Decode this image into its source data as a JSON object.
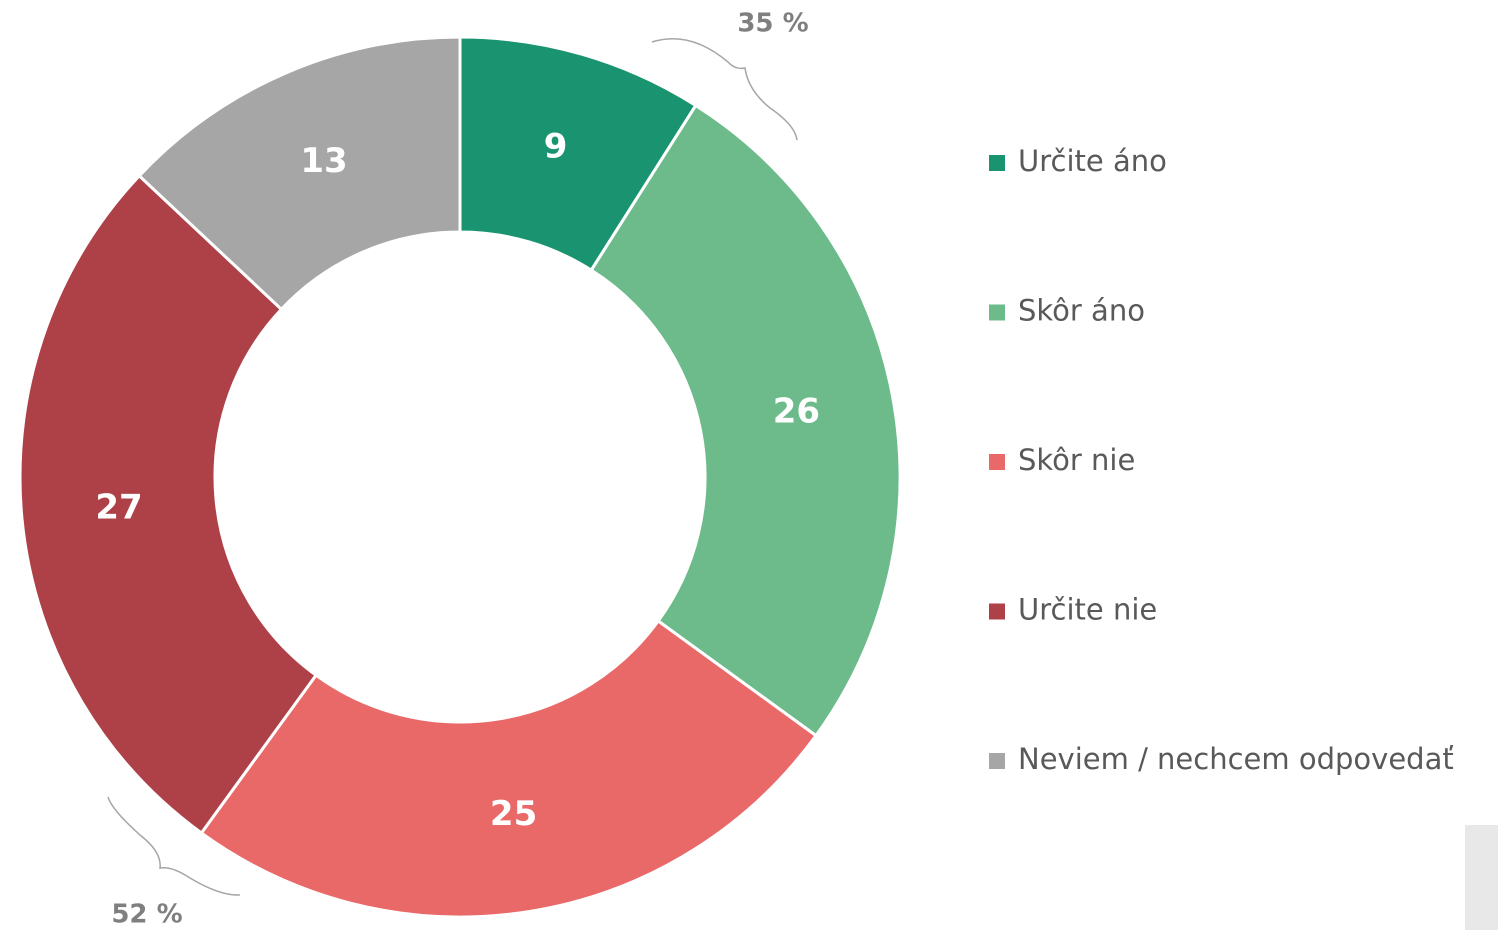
{
  "chart_data": {
    "type": "donut",
    "categories": [
      "Určite áno",
      "Skôr áno",
      "Skôr nie",
      "Určite nie",
      "Neviem / nechcem odpovedať"
    ],
    "values": [
      9,
      26,
      25,
      27,
      13
    ],
    "colors": [
      "#1a9470",
      "#6dbb8b",
      "#e96868",
      "#ae4048",
      "#a6a6a6"
    ],
    "legend": "right",
    "annotations": [
      "35 %",
      "52 %"
    ]
  }
}
